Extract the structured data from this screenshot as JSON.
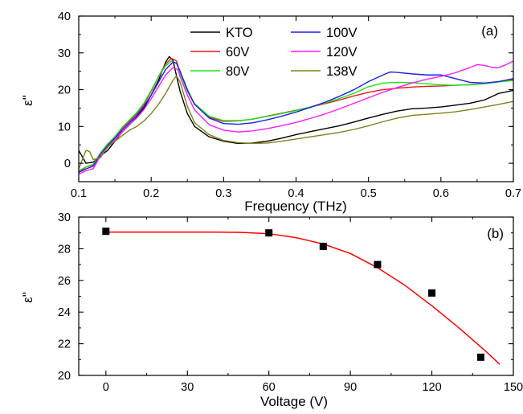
{
  "chart_data": [
    {
      "type": "line",
      "panel_label": "(a)",
      "xlabel": "Frequency (THz)",
      "ylabel": "ε\"",
      "xlim": [
        0.1,
        0.7
      ],
      "ylim": [
        -5,
        40
      ],
      "x_ticks": [
        0.1,
        0.2,
        0.3,
        0.4,
        0.5,
        0.6,
        0.7
      ],
      "y_ticks": [
        0,
        10,
        20,
        30,
        40
      ],
      "legend_position": "top-center",
      "series": [
        {
          "name": "KTO",
          "color": "#000000",
          "x": [
            0.1,
            0.11,
            0.12,
            0.13,
            0.14,
            0.15,
            0.16,
            0.17,
            0.18,
            0.19,
            0.2,
            0.21,
            0.22,
            0.225,
            0.23,
            0.24,
            0.25,
            0.26,
            0.28,
            0.3,
            0.32,
            0.34,
            0.36,
            0.38,
            0.4,
            0.42,
            0.44,
            0.46,
            0.48,
            0.5,
            0.52,
            0.54,
            0.56,
            0.58,
            0.6,
            0.62,
            0.64,
            0.66,
            0.68,
            0.7
          ],
          "y": [
            3.5,
            0.0,
            0.3,
            2.0,
            3.5,
            6.0,
            8.5,
            10.5,
            12.5,
            15.0,
            18.5,
            22.5,
            27.5,
            29.0,
            28.0,
            19.5,
            13.5,
            10.0,
            7.2,
            6.0,
            5.4,
            5.5,
            6.0,
            6.8,
            7.8,
            8.6,
            9.4,
            10.2,
            11.2,
            12.3,
            13.3,
            14.2,
            14.8,
            15.0,
            15.3,
            15.8,
            16.3,
            17.2,
            19.0,
            19.8
          ]
        },
        {
          "name": "60V",
          "color": "#e41a1c",
          "x": [
            0.1,
            0.11,
            0.12,
            0.13,
            0.14,
            0.15,
            0.16,
            0.17,
            0.18,
            0.19,
            0.2,
            0.21,
            0.22,
            0.228,
            0.235,
            0.24,
            0.25,
            0.26,
            0.28,
            0.3,
            0.32,
            0.34,
            0.36,
            0.38,
            0.4,
            0.42,
            0.44,
            0.46,
            0.48,
            0.5,
            0.52,
            0.54,
            0.56,
            0.58,
            0.6,
            0.62,
            0.64,
            0.66,
            0.68,
            0.7
          ],
          "y": [
            -2.5,
            -1.0,
            -0.5,
            2.5,
            5.0,
            7.0,
            9.5,
            11.5,
            13.5,
            16.0,
            19.5,
            23.5,
            27.0,
            28.5,
            27.8,
            24.5,
            19.5,
            16.0,
            12.5,
            11.4,
            11.5,
            12.0,
            12.8,
            13.6,
            14.4,
            15.3,
            16.2,
            17.2,
            18.3,
            19.3,
            20.0,
            20.4,
            20.7,
            20.9,
            21.0,
            21.2,
            21.4,
            21.7,
            22.2,
            22.7
          ]
        },
        {
          "name": "80V",
          "color": "#19e619",
          "x": [
            0.1,
            0.11,
            0.12,
            0.13,
            0.14,
            0.15,
            0.16,
            0.17,
            0.18,
            0.19,
            0.2,
            0.21,
            0.22,
            0.228,
            0.235,
            0.24,
            0.25,
            0.26,
            0.28,
            0.3,
            0.32,
            0.34,
            0.36,
            0.38,
            0.4,
            0.42,
            0.44,
            0.46,
            0.48,
            0.5,
            0.52,
            0.54,
            0.56,
            0.58,
            0.6,
            0.62,
            0.64,
            0.66,
            0.68,
            0.7
          ],
          "y": [
            -2.0,
            -1.0,
            -0.3,
            2.8,
            5.3,
            7.3,
            9.8,
            11.8,
            13.8,
            16.3,
            19.8,
            23.5,
            26.5,
            27.8,
            27.2,
            24.5,
            19.5,
            16.2,
            12.8,
            11.6,
            11.6,
            12.0,
            12.7,
            13.5,
            14.3,
            15.3,
            16.4,
            17.6,
            19.0,
            20.8,
            21.8,
            22.0,
            21.9,
            21.6,
            21.3,
            21.2,
            21.3,
            21.6,
            22.1,
            22.5
          ]
        },
        {
          "name": "100V",
          "color": "#1f1fe6",
          "x": [
            0.1,
            0.11,
            0.12,
            0.13,
            0.14,
            0.15,
            0.16,
            0.17,
            0.18,
            0.19,
            0.2,
            0.21,
            0.22,
            0.23,
            0.235,
            0.24,
            0.25,
            0.26,
            0.28,
            0.3,
            0.32,
            0.34,
            0.36,
            0.38,
            0.4,
            0.42,
            0.44,
            0.46,
            0.48,
            0.5,
            0.52,
            0.53,
            0.54,
            0.56,
            0.58,
            0.6,
            0.62,
            0.64,
            0.66,
            0.68,
            0.7
          ],
          "y": [
            -2.5,
            -1.5,
            -0.8,
            2.5,
            4.8,
            6.8,
            9.0,
            11.0,
            13.0,
            15.5,
            18.5,
            22.0,
            25.5,
            27.5,
            27.2,
            25.0,
            20.0,
            16.0,
            12.3,
            10.8,
            10.6,
            11.0,
            11.8,
            12.8,
            13.9,
            15.2,
            16.6,
            18.2,
            20.0,
            22.2,
            24.0,
            24.8,
            24.7,
            24.3,
            24.0,
            24.0,
            23.0,
            22.0,
            21.8,
            22.2,
            23.0
          ]
        },
        {
          "name": "120V",
          "color": "#ff1aff",
          "x": [
            0.1,
            0.11,
            0.12,
            0.13,
            0.14,
            0.15,
            0.16,
            0.17,
            0.18,
            0.19,
            0.2,
            0.21,
            0.22,
            0.23,
            0.237,
            0.24,
            0.25,
            0.26,
            0.28,
            0.3,
            0.32,
            0.34,
            0.36,
            0.38,
            0.4,
            0.42,
            0.44,
            0.46,
            0.48,
            0.5,
            0.52,
            0.54,
            0.56,
            0.58,
            0.6,
            0.62,
            0.64,
            0.65,
            0.66,
            0.67,
            0.68,
            0.69,
            0.7
          ],
          "y": [
            -3.0,
            -2.0,
            -1.5,
            2.0,
            4.3,
            6.3,
            8.5,
            10.5,
            12.3,
            14.6,
            17.5,
            20.8,
            24.0,
            26.0,
            25.5,
            23.5,
            18.5,
            14.5,
            10.5,
            9.0,
            8.5,
            8.8,
            9.4,
            10.2,
            11.1,
            12.2,
            13.4,
            14.8,
            16.3,
            17.8,
            19.3,
            20.6,
            21.8,
            22.8,
            23.6,
            24.6,
            26.0,
            26.8,
            26.6,
            26.1,
            26.0,
            26.8,
            27.8
          ]
        },
        {
          "name": "138V",
          "color": "#808019",
          "x": [
            0.1,
            0.105,
            0.11,
            0.115,
            0.12,
            0.13,
            0.14,
            0.15,
            0.16,
            0.17,
            0.18,
            0.19,
            0.2,
            0.21,
            0.22,
            0.23,
            0.235,
            0.24,
            0.25,
            0.26,
            0.28,
            0.3,
            0.32,
            0.34,
            0.36,
            0.38,
            0.4,
            0.42,
            0.44,
            0.46,
            0.48,
            0.5,
            0.52,
            0.54,
            0.56,
            0.58,
            0.6,
            0.62,
            0.64,
            0.66,
            0.68,
            0.7
          ],
          "y": [
            -1.5,
            1.0,
            3.5,
            3.2,
            1.0,
            1.5,
            4.5,
            6.0,
            7.5,
            9.0,
            10.0,
            11.5,
            13.5,
            16.0,
            19.0,
            22.5,
            23.8,
            22.0,
            15.5,
            11.0,
            7.8,
            6.2,
            5.6,
            5.4,
            5.5,
            6.0,
            6.6,
            7.2,
            7.8,
            8.4,
            9.2,
            10.2,
            11.3,
            12.3,
            13.0,
            13.3,
            13.6,
            14.0,
            14.6,
            15.3,
            16.0,
            16.8
          ]
        }
      ]
    },
    {
      "type": "scatter",
      "panel_label": "(b)",
      "xlabel": "Voltage (V)",
      "ylabel": "ε\"",
      "xlim": [
        -10,
        150
      ],
      "ylim": [
        20,
        30
      ],
      "x_ticks": [
        0,
        30,
        60,
        90,
        120,
        150
      ],
      "y_ticks": [
        20,
        22,
        24,
        26,
        28,
        30
      ],
      "points": {
        "color": "#000000",
        "x": [
          0,
          60,
          80,
          100,
          120,
          138
        ],
        "y": [
          29.1,
          29.0,
          28.15,
          27.0,
          25.2,
          21.15
        ]
      },
      "fit": {
        "color": "#ff0000",
        "x": [
          0,
          20,
          40,
          50,
          60,
          70,
          80,
          90,
          100,
          110,
          120,
          130,
          140,
          145
        ],
        "y": [
          29.05,
          29.05,
          29.05,
          29.03,
          28.95,
          28.7,
          28.3,
          27.7,
          26.8,
          25.7,
          24.4,
          23.0,
          21.5,
          20.7
        ]
      }
    }
  ]
}
